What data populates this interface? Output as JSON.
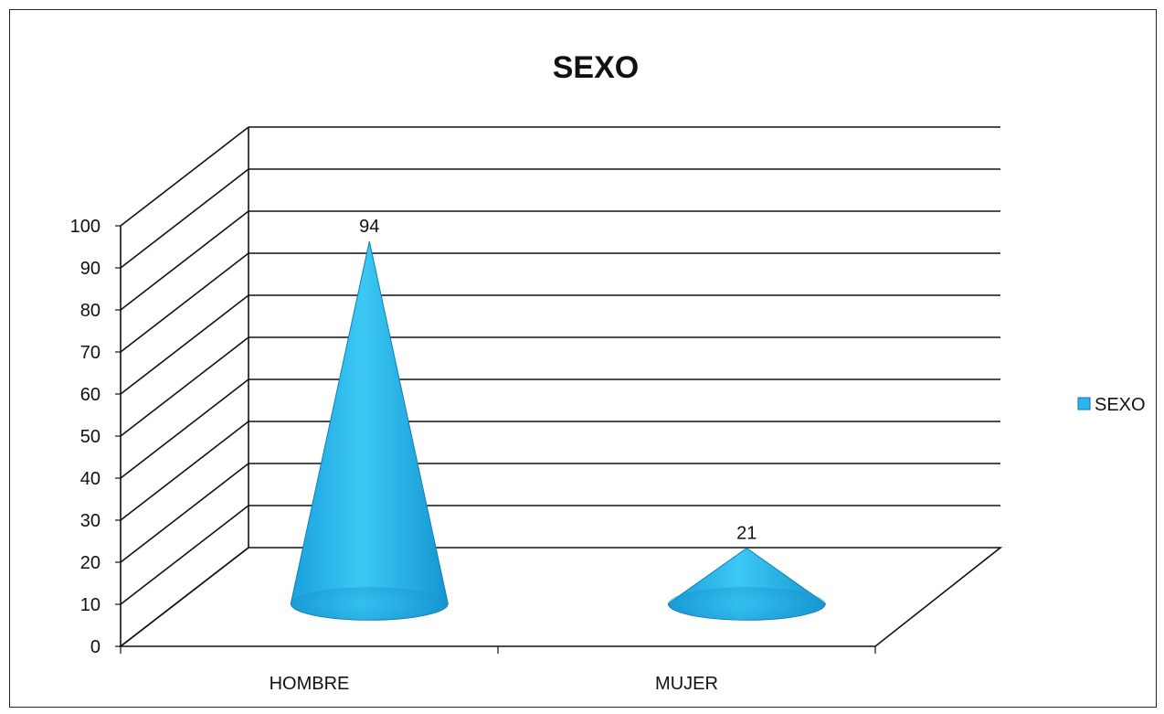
{
  "chart_data": {
    "type": "bar",
    "style": "3d-cone",
    "title": "SEXO",
    "categories": [
      "HOMBRE",
      "MUJER"
    ],
    "series": [
      {
        "name": "SEXO",
        "values": [
          94,
          21
        ],
        "color": "#29b6f0"
      }
    ],
    "data_labels": [
      "94",
      "21"
    ],
    "ylim": [
      0,
      100
    ],
    "yticks": [
      0,
      10,
      20,
      30,
      40,
      50,
      60,
      70,
      80,
      90,
      100
    ],
    "grid": true,
    "legend": {
      "position": "right",
      "entries": [
        "SEXO"
      ]
    }
  }
}
